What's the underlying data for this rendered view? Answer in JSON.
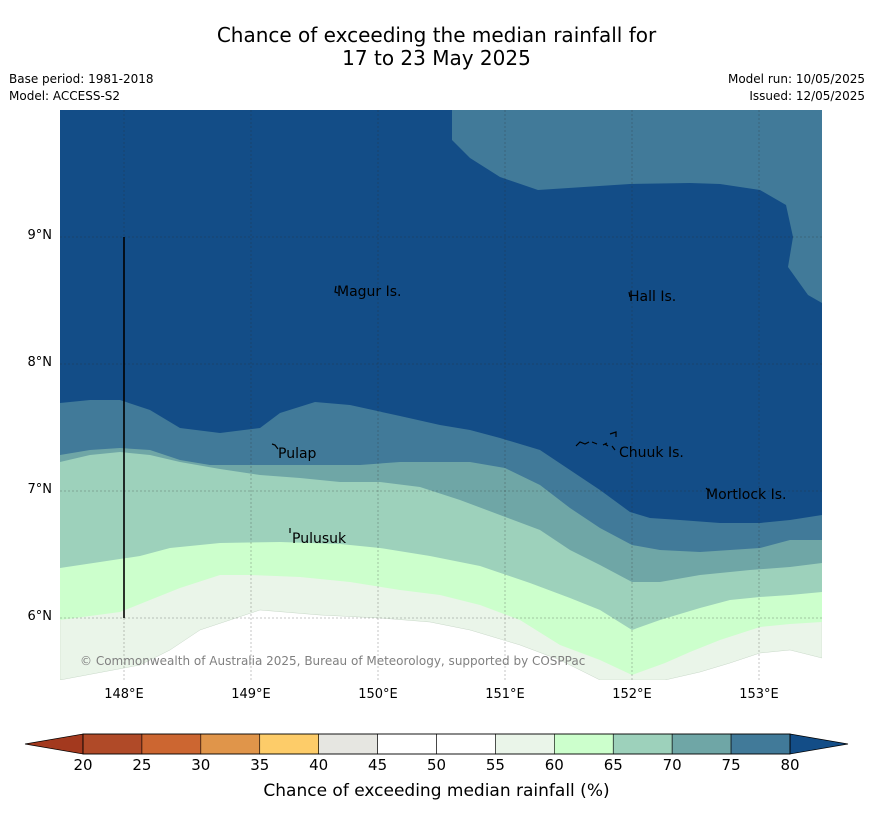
{
  "title": {
    "line1": "Chance of exceeding the median rainfall for",
    "line2": "17 to 23 May 2025"
  },
  "meta": {
    "base_period": "Base period: 1981-2018",
    "model": "Model: ACCESS-S2",
    "model_run": "Model run: 10/05/2025",
    "issued": "Issued: 12/05/2025"
  },
  "axes": {
    "lat_ticks": [
      "9°N",
      "8°N",
      "7°N",
      "6°N"
    ],
    "lon_ticks": [
      "148°E",
      "149°E",
      "150°E",
      "151°E",
      "152°E",
      "153°E"
    ]
  },
  "places": [
    {
      "name": "Magur Is.",
      "lon": 149.7,
      "lat": 8.58
    },
    {
      "name": "Hall Is.",
      "lon": 151.98,
      "lat": 8.55
    },
    {
      "name": "Pulap",
      "lon": 149.2,
      "lat": 7.33
    },
    {
      "name": "Chuuk Is.",
      "lon": 151.9,
      "lat": 7.32
    },
    {
      "name": "Mortlock Is.",
      "lon": 152.6,
      "lat": 6.98
    },
    {
      "name": "Pulusuk",
      "lon": 149.3,
      "lat": 6.67
    }
  ],
  "copyright": "© Commonwealth of Australia 2025, Bureau of Meteorology, supported by COSPPac",
  "colorbar": {
    "ticks": [
      "20",
      "25",
      "30",
      "35",
      "40",
      "45",
      "50",
      "55",
      "60",
      "65",
      "70",
      "75",
      "80"
    ],
    "colors": [
      "#b04a28",
      "#cc6631",
      "#e0954a",
      "#fdcc69",
      "#e6e6e1",
      "#ffffff",
      "#ffffff",
      "#eaf5e9",
      "#ccffcc",
      "#9dd1bb",
      "#6fa6a6",
      "#417a99"
    ],
    "under_color": "#a3391e",
    "over_color": "#134d87",
    "label": "Chance of exceeding median rainfall (%)"
  }
}
